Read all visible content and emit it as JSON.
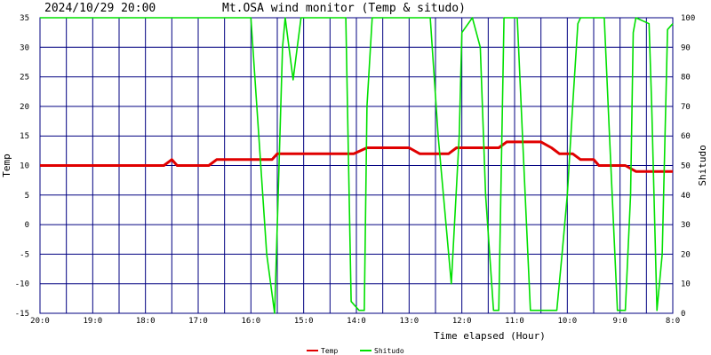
{
  "header": {
    "timestamp": "2024/10/29 20:00",
    "title": "Mt.OSA wind monitor (Temp & situdo)"
  },
  "colors": {
    "frame": "#000080",
    "grid": "#000080",
    "temp": "#e00000",
    "situdo": "#00e000",
    "text": "#000000"
  },
  "chart_data": {
    "type": "line",
    "title": "Mt.OSA wind monitor (Temp & situdo)",
    "xlabel": "Time elapsed (Hour)",
    "ylabel_left": "Temp",
    "ylabel_right": "Shitudo",
    "xlim": [
      0,
      12
    ],
    "ylim_left": [
      -15,
      35
    ],
    "ylim_right": [
      0,
      100
    ],
    "x_ticks": [
      {
        "x": 0,
        "label": "20:0"
      },
      {
        "x": 1,
        "label": "19:0"
      },
      {
        "x": 2,
        "label": "18:0"
      },
      {
        "x": 3,
        "label": "17:0"
      },
      {
        "x": 4,
        "label": "16:0"
      },
      {
        "x": 5,
        "label": "15:0"
      },
      {
        "x": 6,
        "label": "14:0"
      },
      {
        "x": 7,
        "label": "13:0"
      },
      {
        "x": 8,
        "label": "12:0"
      },
      {
        "x": 9,
        "label": "11:0"
      },
      {
        "x": 10,
        "label": "10:0"
      },
      {
        "x": 11,
        "label": "9:0"
      },
      {
        "x": 12,
        "label": "8:0"
      }
    ],
    "y_ticks_left": [
      "35",
      "30",
      "25",
      "20",
      "15",
      "10",
      "5",
      "0",
      "-5",
      "-10",
      "-15"
    ],
    "y_ticks_right": [
      "100",
      "90",
      "80",
      "70",
      "60",
      "50",
      "40",
      "30",
      "20",
      "10",
      "0"
    ],
    "grid": true,
    "legend_position": "bottom-center",
    "series": [
      {
        "name": "Temp",
        "axis": "left",
        "points": [
          [
            0.0,
            10
          ],
          [
            2.35,
            10
          ],
          [
            2.5,
            11
          ],
          [
            2.6,
            10
          ],
          [
            3.2,
            10
          ],
          [
            3.35,
            11
          ],
          [
            4.4,
            11
          ],
          [
            4.5,
            12
          ],
          [
            5.95,
            12
          ],
          [
            6.2,
            13
          ],
          [
            7.0,
            13
          ],
          [
            7.2,
            12
          ],
          [
            7.75,
            12
          ],
          [
            7.9,
            13
          ],
          [
            8.7,
            13
          ],
          [
            8.85,
            14
          ],
          [
            9.5,
            14
          ],
          [
            9.7,
            13
          ],
          [
            9.85,
            12
          ],
          [
            10.1,
            12
          ],
          [
            10.25,
            11
          ],
          [
            10.5,
            11
          ],
          [
            10.6,
            10
          ],
          [
            11.1,
            10
          ],
          [
            11.3,
            9
          ],
          [
            12.0,
            9
          ]
        ]
      },
      {
        "name": "Shitudo",
        "axis": "right",
        "points": [
          [
            0.0,
            100
          ],
          [
            4.0,
            100
          ],
          [
            4.15,
            60
          ],
          [
            4.3,
            20
          ],
          [
            4.45,
            0
          ],
          [
            4.5,
            30
          ],
          [
            4.6,
            90
          ],
          [
            4.65,
            100
          ],
          [
            4.8,
            79
          ],
          [
            4.95,
            100
          ],
          [
            5.8,
            100
          ],
          [
            5.9,
            4
          ],
          [
            6.05,
            1
          ],
          [
            6.15,
            1
          ],
          [
            6.2,
            70
          ],
          [
            6.3,
            100
          ],
          [
            7.4,
            100
          ],
          [
            7.55,
            60
          ],
          [
            7.8,
            10
          ],
          [
            7.95,
            60
          ],
          [
            8.0,
            95
          ],
          [
            8.2,
            100
          ],
          [
            8.35,
            90
          ],
          [
            8.45,
            40
          ],
          [
            8.6,
            1
          ],
          [
            8.7,
            1
          ],
          [
            8.8,
            100
          ],
          [
            9.05,
            100
          ],
          [
            9.15,
            60
          ],
          [
            9.3,
            1
          ],
          [
            9.8,
            1
          ],
          [
            9.9,
            20
          ],
          [
            10.0,
            40
          ],
          [
            10.1,
            70
          ],
          [
            10.2,
            98
          ],
          [
            10.25,
            100
          ],
          [
            10.7,
            100
          ],
          [
            10.8,
            60
          ],
          [
            10.95,
            1
          ],
          [
            11.1,
            1
          ],
          [
            11.2,
            40
          ],
          [
            11.25,
            95
          ],
          [
            11.3,
            100
          ],
          [
            11.55,
            98
          ],
          [
            11.6,
            70
          ],
          [
            11.7,
            1
          ],
          [
            11.8,
            20
          ],
          [
            11.9,
            96
          ],
          [
            12.0,
            98
          ]
        ]
      }
    ]
  }
}
